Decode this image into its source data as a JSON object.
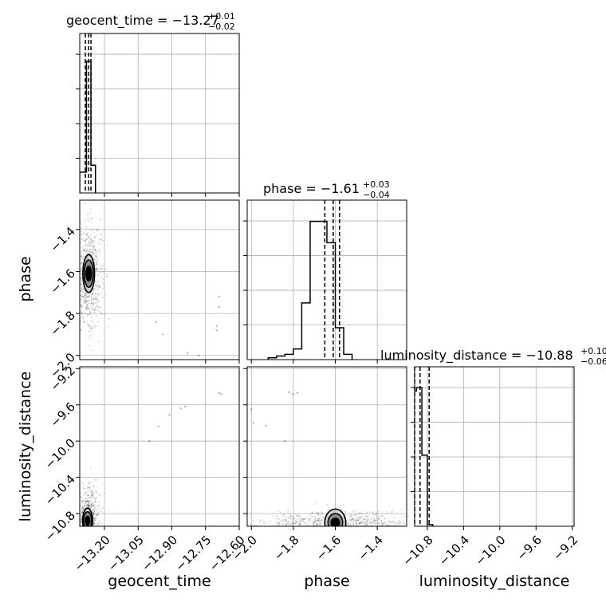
{
  "chart_data": {
    "type": "corner",
    "parameters": [
      "geocent_time",
      "phase",
      "luminosity_distance"
    ],
    "colors": {
      "line": "#000000",
      "grid": "#b0b0b0",
      "scatter": "#000000",
      "background": "#ffffff"
    },
    "grid": true,
    "axes": {
      "geocent_time": {
        "range": [
          -13.31,
          -12.6
        ],
        "ticks": [
          "−13.20",
          "−13.05",
          "−12.90",
          "−12.75",
          "−12.60"
        ],
        "tick_values": [
          -13.2,
          -13.05,
          -12.9,
          -12.75,
          -12.6
        ],
        "label": "geocent_time"
      },
      "phase": {
        "range": [
          -2.02,
          -1.26
        ],
        "ticks": [
          "−2.0",
          "−1.8",
          "−1.6",
          "−1.4"
        ],
        "tick_values": [
          -2.0,
          -1.8,
          -1.6,
          -1.4
        ],
        "label": "phase"
      },
      "luminosity_distance": {
        "range": [
          -10.94,
          -9.18
        ],
        "ticks": [
          "−10.8",
          "−10.4",
          "−10.0",
          "−9.6",
          "−9.2"
        ],
        "tick_values": [
          -10.8,
          -10.4,
          -10.0,
          -9.6,
          -9.2
        ],
        "label": "luminosity_distance"
      }
    },
    "titles": {
      "geocent_time": {
        "main": "geocent_time = −13.27",
        "plus": "+0.01",
        "minus": "−0.02"
      },
      "phase": {
        "main": "phase = −1.61",
        "plus": "+0.03",
        "minus": "−0.04"
      },
      "luminosity_distance": {
        "main": "luminosity_distance = −10.88",
        "plus": "+0.10",
        "minus": "−0.06"
      }
    },
    "histograms": {
      "geocent_time": {
        "edges": [
          -13.31,
          -13.28,
          -13.26,
          -13.24
        ],
        "counts": [
          0.12,
          0.76,
          0.16
        ],
        "ylim": [
          0,
          0.92
        ],
        "quantiles": [
          -13.285,
          -13.27,
          -13.26
        ]
      },
      "phase": {
        "edges": [
          -1.92,
          -1.88,
          -1.84,
          -1.8,
          -1.76,
          -1.72,
          -1.68,
          -1.64,
          -1.6,
          -1.56,
          -1.52
        ],
        "counts": [
          0.01,
          0.02,
          0.03,
          0.06,
          0.32,
          0.78,
          0.78,
          0.66,
          0.18,
          0.03
        ],
        "ylim": [
          0,
          0.9
        ],
        "quantiles": [
          -1.65,
          -1.61,
          -1.58
        ]
      },
      "luminosity_distance": {
        "edges": [
          -10.98,
          -10.92,
          -10.86,
          -10.8,
          -10.74
        ],
        "counts": [
          0.78,
          0.8,
          0.41,
          0.01
        ],
        "ylim": [
          0,
          0.92
        ],
        "quantiles": [
          -10.94,
          -10.88,
          -10.78
        ]
      }
    },
    "pairs": [
      {
        "x": "geocent_time",
        "y": "phase",
        "center": [
          -13.27,
          -1.61
        ],
        "contours": [
          [
            0.012,
            0.035
          ],
          [
            0.02,
            0.065
          ],
          [
            0.026,
            0.09
          ]
        ],
        "cloud": [
          0.03,
          0.12
        ],
        "outliers": [
          [
            -13.3,
            -1.8
          ],
          [
            -13.29,
            -1.84
          ],
          [
            -13.28,
            -1.77
          ],
          [
            -13.26,
            -1.87
          ],
          [
            -13.29,
            -1.5
          ],
          [
            -12.97,
            -1.84
          ],
          [
            -12.94,
            -1.9
          ],
          [
            -12.83,
            -1.99
          ],
          [
            -12.78,
            -2.0
          ],
          [
            -12.7,
            -1.86
          ],
          [
            -12.7,
            -1.88
          ],
          [
            -12.69,
            -1.77
          ],
          [
            -12.69,
            -1.72
          ]
        ]
      },
      {
        "x": "geocent_time",
        "y": "luminosity_distance",
        "center": [
          -13.275,
          -10.88
        ],
        "contours": [
          [
            0.01,
            0.05
          ],
          [
            0.018,
            0.1
          ],
          [
            0.022,
            0.14
          ]
        ],
        "cloud": [
          0.025,
          0.18
        ],
        "outliers": [
          [
            -13.0,
            -10.0
          ],
          [
            -12.96,
            -9.84
          ],
          [
            -12.91,
            -9.71
          ],
          [
            -12.86,
            -9.64
          ],
          [
            -12.84,
            -9.62
          ],
          [
            -12.69,
            -9.47
          ],
          [
            -12.68,
            -9.48
          ]
        ]
      },
      {
        "x": "phase",
        "y": "luminosity_distance",
        "center": [
          -1.6,
          -10.9
        ],
        "contours": [
          [
            0.02,
            0.05
          ],
          [
            0.035,
            0.1
          ],
          [
            0.05,
            0.15
          ]
        ],
        "cloud": [
          0.18,
          0.06
        ],
        "outliers": [
          [
            -2.0,
            -9.65
          ],
          [
            -1.99,
            -9.8
          ],
          [
            -1.82,
            -9.46
          ],
          [
            -1.8,
            -9.48
          ],
          [
            -1.78,
            -9.47
          ],
          [
            -1.93,
            -9.83
          ],
          [
            -1.84,
            -10.0
          ]
        ]
      }
    ]
  }
}
